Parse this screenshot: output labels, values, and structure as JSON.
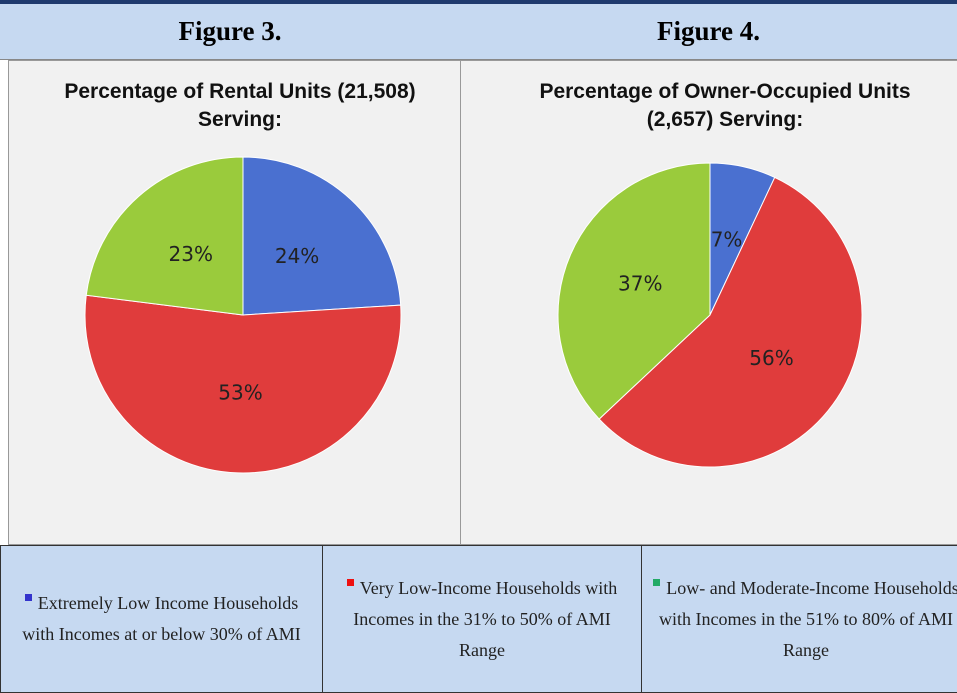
{
  "figures": [
    "Figure 3.",
    "Figure 4."
  ],
  "chart_data": [
    {
      "type": "pie",
      "title": "Percentage of Rental Units (21,508) Serving:",
      "values": [
        24,
        53,
        23
      ],
      "value_labels": [
        "24%",
        "53%",
        "23%"
      ],
      "colors": [
        "#4a70d0",
        "#e03c3c",
        "#9acb3c"
      ]
    },
    {
      "type": "pie",
      "title": "Percentage of Owner-Occupied Units (2,657) Serving:",
      "values": [
        7,
        56,
        37
      ],
      "value_labels": [
        "7%",
        "56%",
        "37%"
      ],
      "colors": [
        "#4a70d0",
        "#e03c3c",
        "#9acb3c"
      ]
    }
  ],
  "legend": [
    {
      "name": "Extremely Low Income Households with Incomes at or below 30% of AMI",
      "color": "#3333cc"
    },
    {
      "name": "Very Low-Income Households with Incomes in the 31% to 50% of AMI Range",
      "color": "#ee1111"
    },
    {
      "name": "Low- and Moderate-Income Households with Incomes in the 51% to 80% of AMI Range",
      "color": "#22aa66"
    }
  ]
}
